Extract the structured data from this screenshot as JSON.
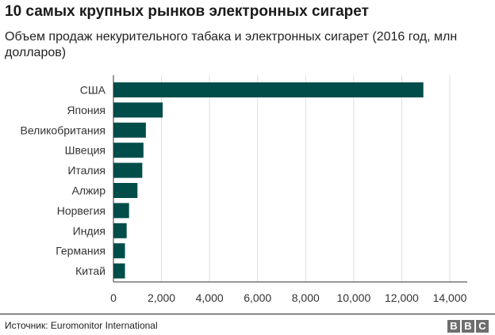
{
  "header": {
    "title": "10 самых крупных рынков электронных сигарет",
    "subtitle": "Объем продаж некурительного табака и электронных сигарет (2016 год, млн долларов)"
  },
  "footer": {
    "source": "Источник: Euromonitor International",
    "logo_letters": [
      "B",
      "B",
      "C"
    ]
  },
  "colors": {
    "bar": "#004d4a",
    "grid": "#dddddd",
    "axis": "#333333"
  },
  "chart_data": {
    "type": "bar",
    "orientation": "horizontal",
    "title": "10 самых крупных рынков электронных сигарет",
    "subtitle": "Объем продаж некурительного табака и электронных сигарет (2016 год, млн долларов)",
    "categories": [
      "США",
      "Япония",
      "Великобритания",
      "Швеция",
      "Италия",
      "Алжир",
      "Норвегия",
      "Индия",
      "Германия",
      "Китай"
    ],
    "values": [
      12900,
      2050,
      1350,
      1250,
      1200,
      1000,
      650,
      550,
      480,
      480
    ],
    "xlim": [
      0,
      14000
    ],
    "ticks": [
      0,
      2000,
      4000,
      6000,
      8000,
      10000,
      12000,
      14000
    ],
    "tick_labels": [
      "0",
      "2,000",
      "4,000",
      "6,000",
      "8,000",
      "10,000",
      "12,000",
      "14,000"
    ],
    "grid": true,
    "legend": "none"
  }
}
